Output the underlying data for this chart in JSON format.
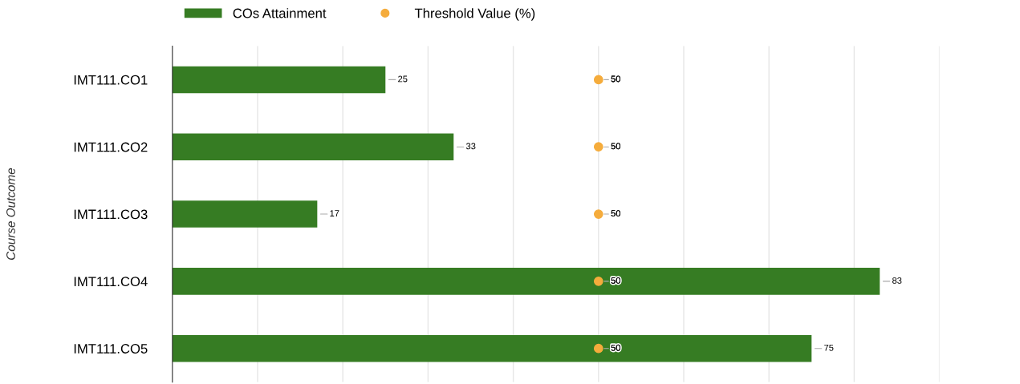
{
  "chart_data": {
    "type": "bar",
    "orientation": "horizontal",
    "ylabel": "Course Outcome",
    "categories": [
      "IMT111.CO1",
      "IMT111.CO2",
      "IMT111.CO3",
      "IMT111.CO4",
      "IMT111.CO5"
    ],
    "series": [
      {
        "name": "COs Attainment",
        "color": "#367c23",
        "values": [
          25,
          33,
          17,
          83,
          75
        ]
      },
      {
        "name": "Threshold Value (%)",
        "type": "scatter",
        "color": "#f5ac3c",
        "values": [
          50,
          50,
          50,
          50,
          50
        ]
      }
    ],
    "xlim": [
      0,
      90
    ],
    "xticks": [
      {
        "value": 0,
        "label": null
      },
      {
        "value": 10,
        "label": null
      },
      {
        "value": 20,
        "label": null
      },
      {
        "value": 30,
        "label": null
      },
      {
        "value": 40,
        "label": null
      },
      {
        "value": 50,
        "label": null
      },
      {
        "value": 60,
        "label": null
      },
      {
        "value": 70,
        "label": null
      },
      {
        "value": 80,
        "label": null
      },
      {
        "value": 90,
        "label": null
      }
    ],
    "tick_labels": "y",
    "grid": "x",
    "legend": "top",
    "data_labels": true,
    "marker": "circle"
  }
}
